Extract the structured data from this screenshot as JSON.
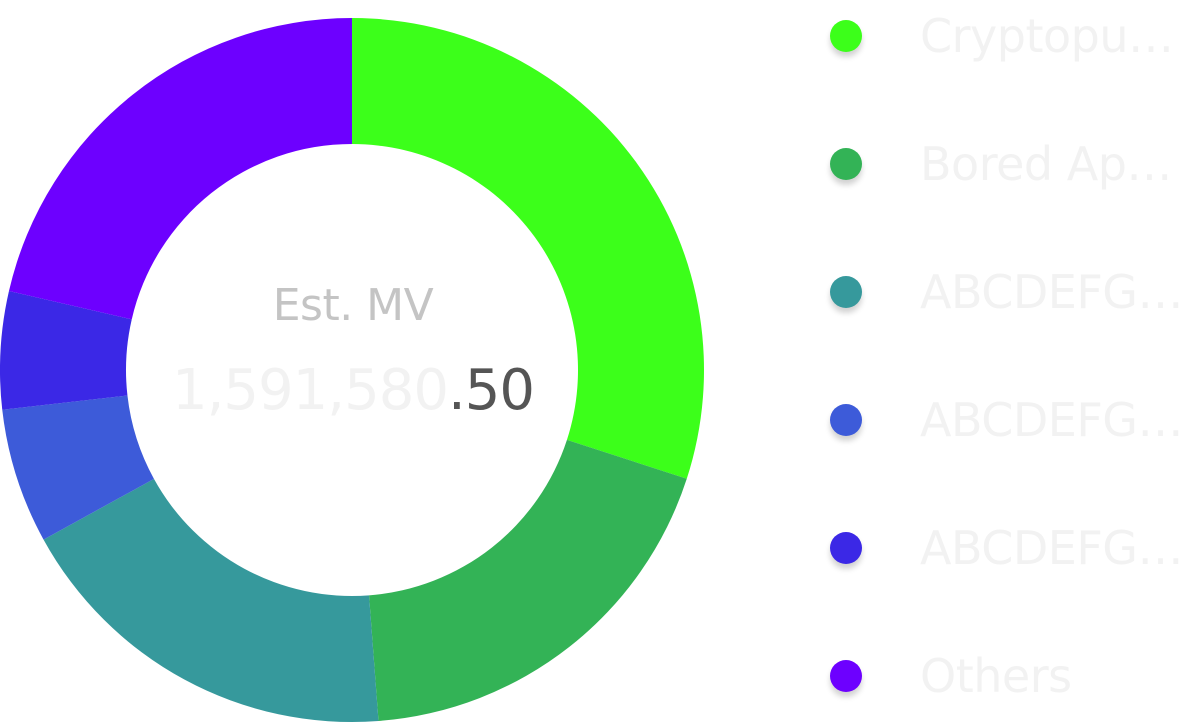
{
  "center": {
    "label": "Est. MV",
    "value_int": "1,591,580",
    "value_dec": ".50"
  },
  "chart_data": {
    "type": "pie",
    "variant": "donut",
    "title": "",
    "categories": [
      "Cryptopun...",
      "Bored Ape...",
      "ABCDEFGH...",
      "ABCDEFGH...",
      "ABCDEFGH...",
      "Others"
    ],
    "values": [
      30.0,
      18.8,
      18.2,
      6.2,
      5.4,
      21.4
    ],
    "colors": [
      "#3cff1a",
      "#33b356",
      "#36999c",
      "#3d5bd9",
      "#3b28e6",
      "#6d00ff"
    ],
    "legend_position": "right"
  },
  "legend": {
    "items": [
      {
        "label": "Cryptopun...",
        "color": "#3cff1a"
      },
      {
        "label": "Bored Ape...",
        "color": "#33b356"
      },
      {
        "label": "ABCDEFGH...",
        "color": "#36999c"
      },
      {
        "label": "ABCDEFGH...",
        "color": "#3d5bd9"
      },
      {
        "label": "ABCDEFGH...",
        "color": "#3b28e6"
      },
      {
        "label": "Others",
        "color": "#6d00ff"
      }
    ]
  }
}
